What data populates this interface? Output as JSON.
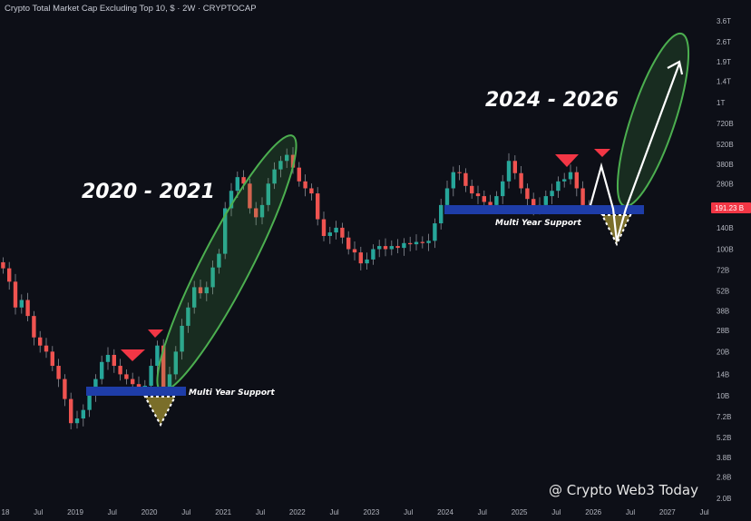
{
  "header": {
    "title": "Crypto Total Market Cap Excluding Top 10, $ · 2W · CRYPTOCAP"
  },
  "watermark": "@ Crypto Web3 Today",
  "colors": {
    "background": "#0d0f17",
    "up": "#26a69a",
    "down": "#ef5350",
    "support": "#1e3da8",
    "marker": "#f23645",
    "ellipse": "#4caf50",
    "price_badge": "#f23645"
  },
  "annotations": {
    "period_1": "2020 - 2021",
    "period_2": "2024 - 2026",
    "support_1": "Multi Year Support",
    "support_2": "Multi Year Support"
  },
  "chart_data": {
    "type": "candlestick",
    "title": "Crypto Total Market Cap Excluding Top 10, $ · 2W · CRYPTOCAP",
    "y_scale": "log",
    "y_ticks": [
      "3.6T",
      "2.6T",
      "1.9T",
      "1.4T",
      "1T",
      "720B",
      "520B",
      "380B",
      "280B",
      "140B",
      "100B",
      "72B",
      "52B",
      "38B",
      "28B",
      "20B",
      "14B",
      "10B",
      "7.2B",
      "5.2B",
      "3.8B",
      "2.8B",
      "2.0B"
    ],
    "x_ticks": [
      "18",
      "Jul",
      "2019",
      "Jul",
      "2020",
      "Jul",
      "2021",
      "Jul",
      "2022",
      "Jul",
      "2023",
      "Jul",
      "2024",
      "Jul",
      "2025",
      "Jul",
      "2026",
      "Jul",
      "2027",
      "Jul"
    ],
    "current_price": "191.23 B",
    "unit": "B USD",
    "start": "2018-01",
    "monthly_close_approx": [
      74,
      60,
      40,
      45,
      35,
      25,
      22,
      20,
      16,
      13,
      9.5,
      6.5,
      7,
      8,
      10,
      13,
      17,
      19,
      16,
      14,
      13,
      12,
      11.5,
      11.7,
      16,
      22,
      11,
      14,
      20,
      30,
      40,
      55,
      50,
      55,
      75,
      93,
      190,
      250,
      310,
      280,
      190,
      165,
      200,
      280,
      350,
      400,
      440,
      360,
      290,
      260,
      240,
      160,
      123,
      130,
      140,
      120,
      100,
      95,
      80,
      85,
      100,
      105,
      100,
      105,
      102,
      110,
      108,
      112,
      110,
      114,
      150,
      200,
      260,
      335,
      330,
      270,
      240,
      230,
      210,
      200,
      230,
      290,
      400,
      330,
      260,
      220,
      190,
      200,
      230,
      250,
      290,
      300,
      335,
      260,
      200,
      191.23
    ],
    "grid": false
  }
}
